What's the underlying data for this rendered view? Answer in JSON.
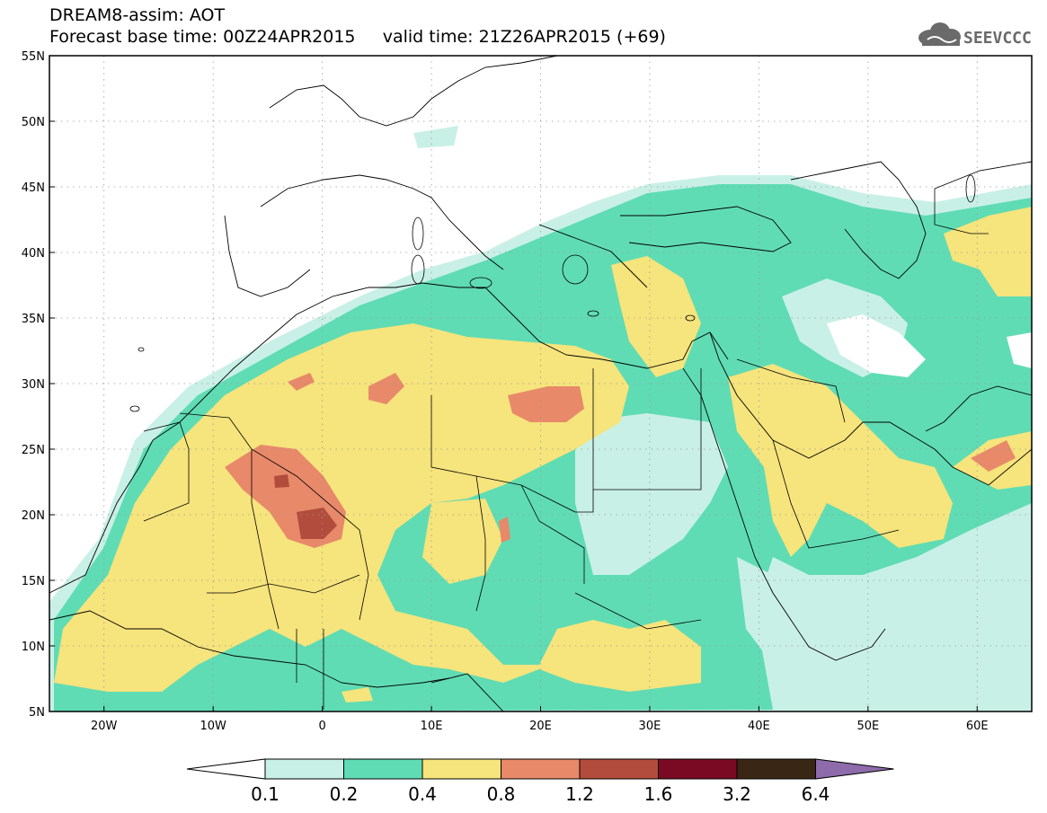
{
  "header": {
    "title_line1": "DREAM8-assim: AOT",
    "title_line2": "Forecast base time: 00Z24APR2015     valid time: 21Z26APR2015 (+69)",
    "logo_text": "SEEVCCC"
  },
  "map": {
    "lon_range": [
      -25,
      65
    ],
    "lat_range": [
      5,
      55
    ],
    "lat_labels": [
      "55N",
      "50N",
      "45N",
      "40N",
      "35N",
      "30N",
      "25N",
      "20N",
      "15N",
      "10N",
      "5N"
    ],
    "lat_values": [
      55,
      50,
      45,
      40,
      35,
      30,
      25,
      20,
      15,
      10,
      5
    ],
    "lon_labels": [
      "20W",
      "10W",
      "0",
      "10E",
      "20E",
      "30E",
      "40E",
      "50E",
      "60E"
    ],
    "lon_values": [
      -20,
      -10,
      0,
      10,
      20,
      30,
      40,
      50,
      60
    ]
  },
  "colorbar": {
    "levels": [
      "0.1",
      "0.2",
      "0.4",
      "0.8",
      "1.2",
      "1.6",
      "3.2",
      "6.4"
    ],
    "colors": [
      "#ffffff",
      "#c9f0e6",
      "#5fdcb4",
      "#f6e47c",
      "#e8896a",
      "#b24c3c",
      "#7a0a23",
      "#3a2614",
      "#8e6bab"
    ]
  },
  "colors": {
    "aot_01_02": "#c9f0e6",
    "aot_02_04": "#5fdcb4",
    "aot_04_08": "#f6e47c",
    "aot_08_12": "#e8896a",
    "aot_12_16": "#b24c3c",
    "border": "#000000",
    "logo": "#666666"
  }
}
